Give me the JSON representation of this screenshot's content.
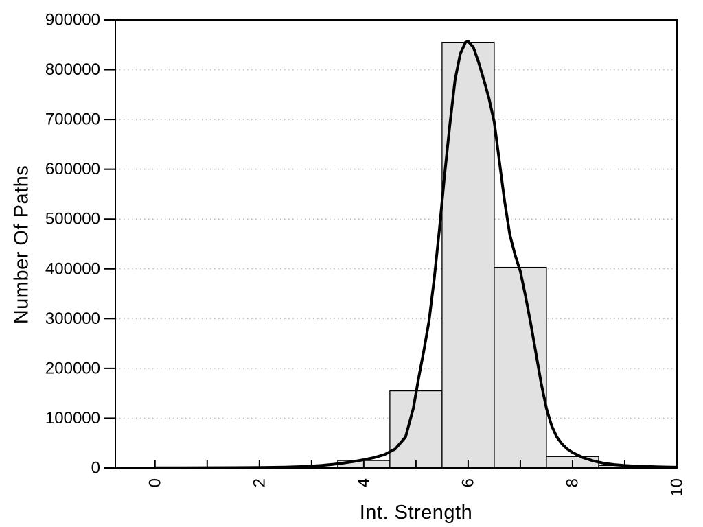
{
  "chart_data": {
    "type": "bar",
    "subtype": "histogram-with-density-curve",
    "title": "",
    "xlabel": "Int. Strength",
    "ylabel": "Number Of Paths",
    "xlim": [
      -0.76,
      10.0
    ],
    "ylim": [
      0,
      900000
    ],
    "x_ticks": {
      "positions": [
        0,
        1,
        2,
        3,
        4,
        5,
        6,
        7,
        8,
        9,
        10
      ],
      "labeled": [
        0,
        2,
        4,
        6,
        8,
        10
      ],
      "label_rotation_deg": -90
    },
    "y_ticks": [
      0,
      100000,
      200000,
      300000,
      400000,
      500000,
      600000,
      700000,
      800000,
      900000
    ],
    "gridlines": {
      "horizontal_values": [
        100000,
        200000,
        300000,
        400000,
        500000,
        600000,
        700000,
        800000
      ],
      "style": "dotted",
      "vertical": false
    },
    "legend": "none",
    "bars": {
      "bin_width": 1,
      "categories": [
        4,
        5,
        6,
        7,
        8,
        9
      ],
      "values": [
        15000,
        155000,
        855000,
        403000,
        23000,
        5000
      ]
    },
    "series": [
      {
        "name": "density-fit-curve",
        "type": "line",
        "points": [
          [
            0,
            400
          ],
          [
            0.5,
            450
          ],
          [
            1,
            550
          ],
          [
            1.5,
            700
          ],
          [
            2,
            1000
          ],
          [
            2.5,
            1800
          ],
          [
            2.8,
            2800
          ],
          [
            3,
            3800
          ],
          [
            3.2,
            5200
          ],
          [
            3.4,
            7200
          ],
          [
            3.6,
            9800
          ],
          [
            3.8,
            13000
          ],
          [
            4,
            16500
          ],
          [
            4.2,
            21000
          ],
          [
            4.4,
            27000
          ],
          [
            4.6,
            38000
          ],
          [
            4.8,
            62000
          ],
          [
            4.95,
            120000
          ],
          [
            5.05,
            180000
          ],
          [
            5.15,
            235000
          ],
          [
            5.25,
            295000
          ],
          [
            5.35,
            380000
          ],
          [
            5.45,
            480000
          ],
          [
            5.55,
            590000
          ],
          [
            5.65,
            690000
          ],
          [
            5.75,
            780000
          ],
          [
            5.85,
            832000
          ],
          [
            5.95,
            855000
          ],
          [
            6.0,
            857000
          ],
          [
            6.1,
            845000
          ],
          [
            6.2,
            815000
          ],
          [
            6.3,
            780000
          ],
          [
            6.4,
            742000
          ],
          [
            6.5,
            695000
          ],
          [
            6.6,
            615000
          ],
          [
            6.7,
            535000
          ],
          [
            6.8,
            468000
          ],
          [
            6.9,
            428000
          ],
          [
            7.0,
            395000
          ],
          [
            7.1,
            345000
          ],
          [
            7.2,
            290000
          ],
          [
            7.3,
            230000
          ],
          [
            7.4,
            170000
          ],
          [
            7.5,
            120000
          ],
          [
            7.6,
            85000
          ],
          [
            7.7,
            62000
          ],
          [
            7.8,
            48000
          ],
          [
            7.9,
            38000
          ],
          [
            8.0,
            31000
          ],
          [
            8.2,
            21000
          ],
          [
            8.4,
            14000
          ],
          [
            8.6,
            9500
          ],
          [
            8.8,
            6800
          ],
          [
            9.0,
            5000
          ],
          [
            9.2,
            3800
          ],
          [
            9.4,
            3000
          ],
          [
            9.6,
            2400
          ],
          [
            9.8,
            1900
          ],
          [
            10,
            1500
          ]
        ]
      }
    ],
    "colors": {
      "background": "#ffffff",
      "bar_fill": "#e1e1e1",
      "bar_border": "#000000",
      "curve": "#000000",
      "grid": "#b8b8b8",
      "frame": "#000000",
      "text": "#000000"
    }
  }
}
